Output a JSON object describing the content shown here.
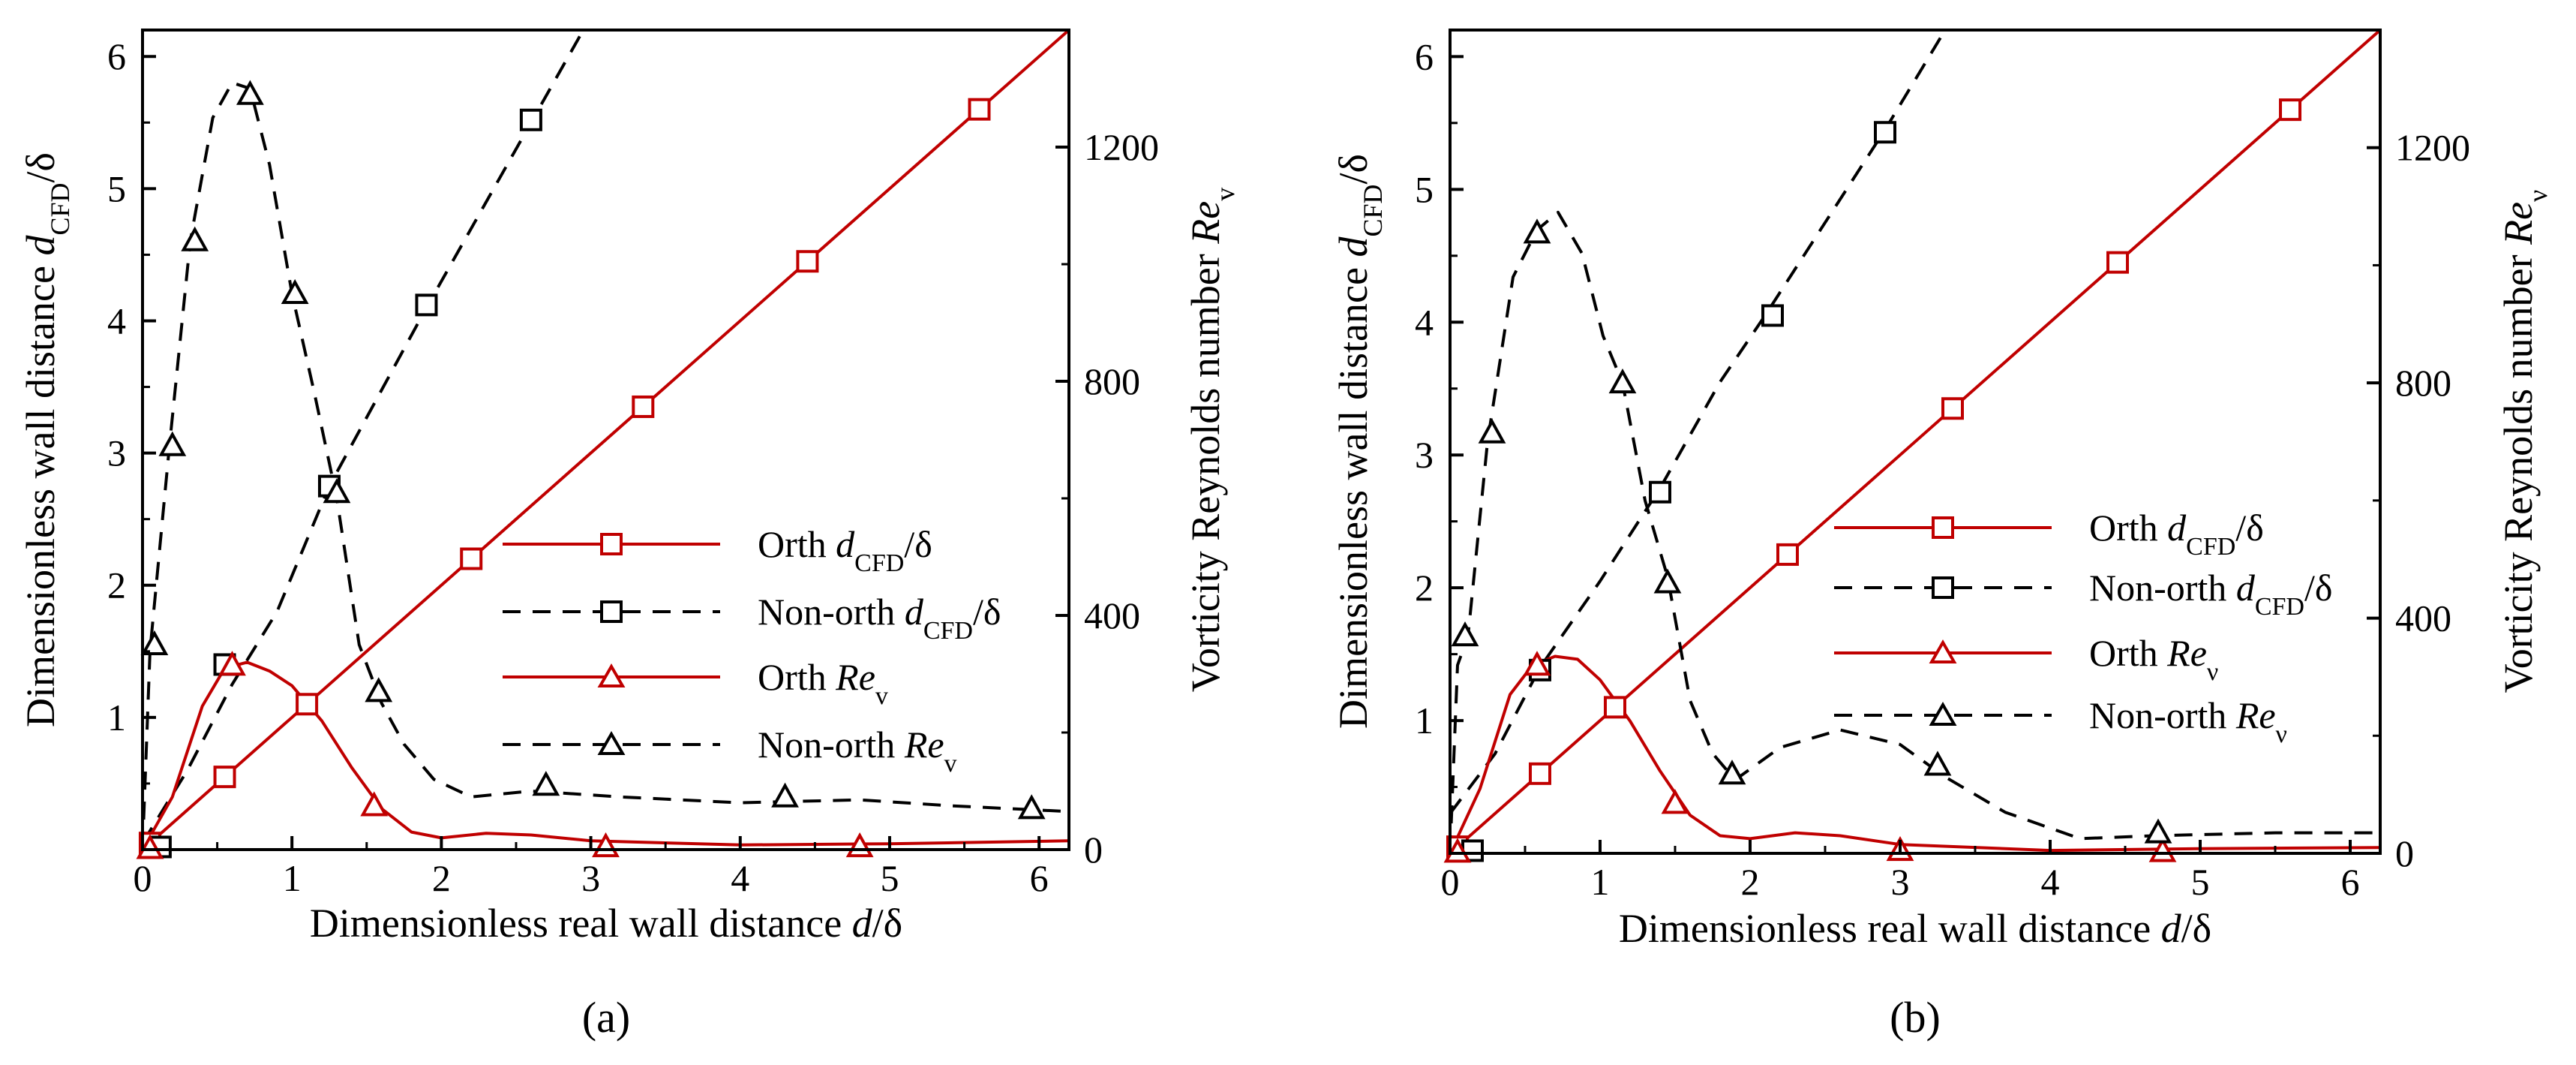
{
  "chart_data": [
    {
      "type": "line",
      "panel_label": "(a)",
      "xlabel": "Dimensionless real wall distance d/δ",
      "ylabel": "Dimensionless wall distance d_CFD/δ",
      "y2label": "Vorticity Reynolds number Re_v",
      "xlim": [
        0,
        6.2
      ],
      "ylim": [
        0,
        6.2
      ],
      "y2lim": [
        0,
        1400
      ],
      "xticks": [
        "0",
        "1",
        "2",
        "3",
        "4",
        "5",
        "6"
      ],
      "yticks": [
        "1",
        "2",
        "3",
        "4",
        "5",
        "6"
      ],
      "y2ticks": [
        "0",
        "400",
        "800",
        "1200"
      ],
      "series": [
        {
          "name": "Orth d_CFD/δ",
          "axis": "left",
          "color": "#c00000",
          "dash": false,
          "marker": "square",
          "line": [
            [
              0,
              0
            ],
            [
              6.2,
              6.2
            ]
          ],
          "markers": [
            [
              0.05,
              0.05
            ],
            [
              0.55,
              0.55
            ],
            [
              1.1,
              1.1
            ],
            [
              2.2,
              2.2
            ],
            [
              3.35,
              3.35
            ],
            [
              4.45,
              4.45
            ],
            [
              5.6,
              5.6
            ]
          ]
        },
        {
          "name": "Non-orth d_CFD/δ",
          "axis": "left",
          "color": "#000000",
          "dash": true,
          "marker": "square",
          "line": [
            [
              0,
              0.05
            ],
            [
              0.3,
              0.6
            ],
            [
              0.6,
              1.25
            ],
            [
              0.9,
              1.8
            ],
            [
              1.25,
              2.75
            ],
            [
              1.9,
              4.1
            ],
            [
              2.6,
              5.5
            ],
            [
              2.95,
              6.2
            ]
          ],
          "markers": [
            [
              0.12,
              0.02
            ],
            [
              0.55,
              1.4
            ],
            [
              1.25,
              2.75
            ],
            [
              1.9,
              4.12
            ],
            [
              2.6,
              5.52
            ]
          ]
        },
        {
          "name": "Orth Re_v",
          "axis": "right",
          "color": "#c00000",
          "dash": false,
          "marker": "triangle",
          "line": [
            [
              0,
              0
            ],
            [
              0.2,
              90
            ],
            [
              0.4,
              245
            ],
            [
              0.55,
              310
            ],
            [
              0.7,
              320
            ],
            [
              0.85,
              305
            ],
            [
              1.0,
              280
            ],
            [
              1.2,
              220
            ],
            [
              1.4,
              140
            ],
            [
              1.6,
              70
            ],
            [
              1.8,
              30
            ],
            [
              2.0,
              20
            ],
            [
              2.3,
              28
            ],
            [
              2.6,
              25
            ],
            [
              3.0,
              15
            ],
            [
              4.0,
              8
            ],
            [
              5.0,
              10
            ],
            [
              6.2,
              15
            ]
          ],
          "markers": [
            [
              0.05,
              2
            ],
            [
              0.6,
              315
            ],
            [
              1.55,
              75
            ],
            [
              3.1,
              5
            ],
            [
              4.8,
              5
            ]
          ]
        },
        {
          "name": "Non-orth Re_v",
          "axis": "right",
          "color": "#000000",
          "dash": true,
          "marker": "triangle",
          "line": [
            [
              0,
              0
            ],
            [
              0.05,
              340
            ],
            [
              0.18,
              690
            ],
            [
              0.32,
              1040
            ],
            [
              0.47,
              1250
            ],
            [
              0.6,
              1310
            ],
            [
              0.72,
              1300
            ],
            [
              0.85,
              1170
            ],
            [
              1.0,
              950
            ],
            [
              1.15,
              780
            ],
            [
              1.3,
              600
            ],
            [
              1.45,
              350
            ],
            [
              1.6,
              250
            ],
            [
              1.75,
              180
            ],
            [
              1.95,
              120
            ],
            [
              2.2,
              90
            ],
            [
              2.6,
              100
            ],
            [
              3.2,
              90
            ],
            [
              4.0,
              80
            ],
            [
              4.8,
              85
            ],
            [
              5.4,
              75
            ],
            [
              6.2,
              65
            ]
          ],
          "markers": [
            [
              0.08,
              350
            ],
            [
              0.2,
              690
            ],
            [
              0.35,
              1040
            ],
            [
              0.72,
              1290
            ],
            [
              1.02,
              950
            ],
            [
              1.3,
              610
            ],
            [
              1.58,
              270
            ],
            [
              2.7,
              110
            ],
            [
              4.3,
              90
            ],
            [
              5.95,
              70
            ]
          ]
        }
      ],
      "legend": [
        "Orth d_CFD/δ",
        "Non-orth d_CFD/δ",
        "Orth Re_v",
        "Non-orth Re_v"
      ]
    },
    {
      "type": "line",
      "panel_label": "(b)",
      "xlabel": "Dimensionless real wall distance d/δ",
      "ylabel": "Dimensionless wall distance d_CFD/δ",
      "y2label": "Vorticity Reynolds number Re_v",
      "xlim": [
        0,
        6.2
      ],
      "ylim": [
        0,
        6.2
      ],
      "y2lim": [
        0,
        1400
      ],
      "xticks": [
        "0",
        "1",
        "2",
        "3",
        "4",
        "5",
        "6"
      ],
      "yticks": [
        "1",
        "2",
        "3",
        "4",
        "5",
        "6"
      ],
      "y2ticks": [
        "0",
        "400",
        "800",
        "1200"
      ],
      "series": [
        {
          "name": "Orth d_CFD/δ",
          "axis": "left",
          "color": "#c00000",
          "dash": false,
          "marker": "square",
          "line": [
            [
              0,
              0
            ],
            [
              6.2,
              6.2
            ]
          ],
          "markers": [
            [
              0.05,
              0.05
            ],
            [
              0.6,
              0.6
            ],
            [
              1.1,
              1.1
            ],
            [
              2.25,
              2.25
            ],
            [
              3.35,
              3.35
            ],
            [
              4.45,
              4.45
            ],
            [
              5.6,
              5.6
            ]
          ]
        },
        {
          "name": "Non-orth d_CFD/δ",
          "axis": "left",
          "color": "#000000",
          "dash": true,
          "marker": "square",
          "line": [
            [
              0,
              0.3
            ],
            [
              0.3,
              0.75
            ],
            [
              0.6,
              1.4
            ],
            [
              1.0,
              2.05
            ],
            [
              1.4,
              2.75
            ],
            [
              1.8,
              3.55
            ],
            [
              2.1,
              4.05
            ],
            [
              2.5,
              4.75
            ],
            [
              2.9,
              5.45
            ],
            [
              3.3,
              6.2
            ]
          ],
          "markers": [
            [
              0.15,
              0.02
            ],
            [
              0.6,
              1.38
            ],
            [
              1.4,
              2.72
            ],
            [
              2.15,
              4.05
            ],
            [
              2.9,
              5.43
            ]
          ]
        },
        {
          "name": "Orth Re_v",
          "axis": "right",
          "color": "#c00000",
          "dash": false,
          "marker": "triangle",
          "line": [
            [
              0,
              0
            ],
            [
              0.2,
              110
            ],
            [
              0.4,
              270
            ],
            [
              0.55,
              320
            ],
            [
              0.7,
              335
            ],
            [
              0.85,
              330
            ],
            [
              1.0,
              295
            ],
            [
              1.2,
              225
            ],
            [
              1.4,
              140
            ],
            [
              1.6,
              65
            ],
            [
              1.8,
              30
            ],
            [
              2.0,
              25
            ],
            [
              2.3,
              35
            ],
            [
              2.6,
              30
            ],
            [
              3.0,
              15
            ],
            [
              4.0,
              5
            ],
            [
              5.0,
              8
            ],
            [
              6.2,
              10
            ]
          ],
          "markers": [
            [
              0.05,
              2
            ],
            [
              0.58,
              320
            ],
            [
              1.5,
              85
            ],
            [
              3.0,
              5
            ],
            [
              4.75,
              3
            ]
          ]
        },
        {
          "name": "Non-orth Re_v",
          "axis": "right",
          "color": "#000000",
          "dash": true,
          "marker": "triangle",
          "line": [
            [
              0,
              0
            ],
            [
              0.05,
              320
            ],
            [
              0.12,
              370
            ],
            [
              0.25,
              700
            ],
            [
              0.42,
              980
            ],
            [
              0.58,
              1060
            ],
            [
              0.72,
              1090
            ],
            [
              0.88,
              1020
            ],
            [
              1.02,
              880
            ],
            [
              1.15,
              800
            ],
            [
              1.3,
              600
            ],
            [
              1.45,
              470
            ],
            [
              1.6,
              260
            ],
            [
              1.75,
              170
            ],
            [
              1.9,
              125
            ],
            [
              2.2,
              180
            ],
            [
              2.6,
              210
            ],
            [
              3.0,
              185
            ],
            [
              3.3,
              130
            ],
            [
              3.7,
              70
            ],
            [
              4.2,
              25
            ],
            [
              4.7,
              30
            ],
            [
              5.5,
              35
            ],
            [
              6.2,
              35
            ]
          ],
          "markers": [
            [
              0.1,
              370
            ],
            [
              0.28,
              715
            ],
            [
              0.58,
              1055
            ],
            [
              1.15,
              800
            ],
            [
              1.45,
              460
            ],
            [
              1.88,
              135
            ],
            [
              3.25,
              150
            ],
            [
              4.72,
              35
            ]
          ]
        }
      ],
      "legend": [
        "Orth d_CFD/δ",
        "Non-orth d_CFD/δ",
        "Orth Re_v",
        "Non-orth Re_v"
      ]
    }
  ]
}
